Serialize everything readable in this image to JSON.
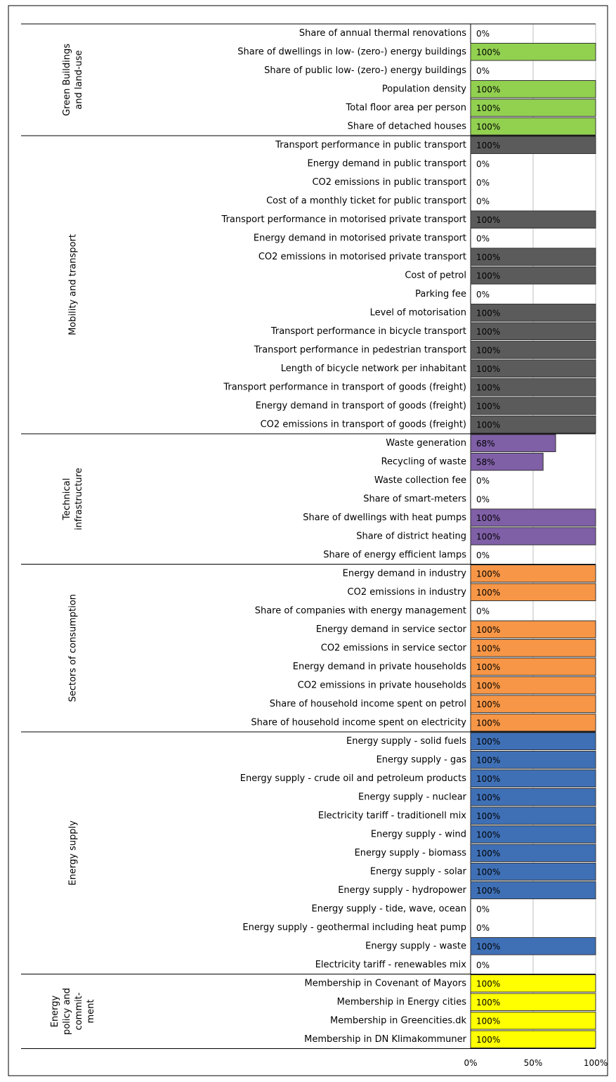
{
  "chart_data": {
    "type": "bar",
    "xlim": [
      0,
      100
    ],
    "xticks": [
      {
        "value": 0,
        "label": "0%"
      },
      {
        "value": 50,
        "label": "50%"
      },
      {
        "value": 100,
        "label": "100%"
      }
    ],
    "grid": true,
    "groups": [
      {
        "name": [
          "Green Buildings",
          "and land-use"
        ],
        "color": "#92d050",
        "categories": [
          "Share of annual thermal renovations",
          "Share of dwellings in low- (zero-) energy buildings",
          "Share of public low- (zero-) energy buildings",
          "Population density",
          "Total floor area per person",
          "Share of detached houses"
        ],
        "values": [
          0,
          100,
          0,
          100,
          100,
          100
        ],
        "value_labels": [
          "0%",
          "100%",
          "0%",
          "100%",
          "100%",
          "100%"
        ]
      },
      {
        "name": [
          "Mobility and transport"
        ],
        "color": "#5b5b5b",
        "categories": [
          "Transport performance in public transport",
          "Energy demand in public transport",
          "CO2 emissions in public transport",
          "Cost of a monthly ticket for public transport",
          "Transport performance in motorised private transport",
          "Energy demand in motorised private transport",
          "CO2 emissions in motorised private transport",
          "Cost of petrol",
          "Parking fee",
          "Level of motorisation",
          "Transport performance in bicycle transport",
          "Transport performance in pedestrian transport",
          "Length of bicycle network per inhabitant",
          "Transport performance in transport of goods (freight)",
          "Energy demand in transport of goods (freight)",
          "CO2 emissions in transport of goods (freight)"
        ],
        "values": [
          100,
          0,
          0,
          0,
          100,
          0,
          100,
          100,
          0,
          100,
          100,
          100,
          100,
          100,
          100,
          100
        ],
        "value_labels": [
          "100%",
          "0%",
          "0%",
          "0%",
          "100%",
          "0%",
          "100%",
          "100%",
          "0%",
          "100%",
          "100%",
          "100%",
          "100%",
          "100%",
          "100%",
          "100%"
        ]
      },
      {
        "name": [
          "Technical",
          "infrastructure"
        ],
        "color": "#7f5fa6",
        "categories": [
          "Waste generation",
          "Recycling of waste",
          "Waste collection fee",
          "Share of smart-meters",
          "Share of dwellings with heat pumps",
          "Share of district heating",
          "Share of energy efficient lamps"
        ],
        "values": [
          68,
          58,
          0,
          0,
          100,
          100,
          0
        ],
        "value_labels": [
          "68%",
          "58%",
          "0%",
          "0%",
          "100%",
          "100%",
          "0%"
        ]
      },
      {
        "name": [
          "Sectors of consumption"
        ],
        "color": "#f79646",
        "categories": [
          "Energy demand in industry",
          "CO2 emissions in industry",
          "Share of companies with energy management",
          "Energy demand in service sector",
          "CO2 emissions in service sector",
          "Energy demand in private households",
          "CO2 emissions in private households",
          "Share of household income spent on petrol",
          "Share of household income spent on electricity"
        ],
        "values": [
          100,
          100,
          0,
          100,
          100,
          100,
          100,
          100,
          100
        ],
        "value_labels": [
          "100%",
          "100%",
          "0%",
          "100%",
          "100%",
          "100%",
          "100%",
          "100%",
          "100%"
        ]
      },
      {
        "name": [
          "Energy supply"
        ],
        "color": "#3f70b6",
        "categories": [
          "Energy supply - solid fuels",
          "Energy supply - gas",
          "Energy supply - crude oil and petroleum products",
          "Energy supply - nuclear",
          "Electricity tariff - traditionell mix",
          "Energy supply - wind",
          "Energy supply - biomass",
          "Energy supply - solar",
          "Energy supply - hydropower",
          "Energy supply - tide, wave, ocean",
          "Energy supply - geothermal including heat pump",
          "Energy supply - waste",
          "Electricity tariff - renewables mix"
        ],
        "values": [
          100,
          100,
          100,
          100,
          100,
          100,
          100,
          100,
          100,
          0,
          0,
          100,
          0
        ],
        "value_labels": [
          "100%",
          "100%",
          "100%",
          "100%",
          "100%",
          "100%",
          "100%",
          "100%",
          "100%",
          "0%",
          "0%",
          "100%",
          "0%"
        ]
      },
      {
        "name": [
          "Energy",
          "policy and",
          "commit-",
          "ment"
        ],
        "color": "#ffff00",
        "categories": [
          "Membership in Covenant of Mayors",
          "Membership in Energy cities",
          "Membership in Greencities.dk",
          "Membership in DN Klimakommuner"
        ],
        "values": [
          100,
          100,
          100,
          100
        ],
        "value_labels": [
          "100%",
          "100%",
          "100%",
          "100%"
        ]
      }
    ]
  }
}
